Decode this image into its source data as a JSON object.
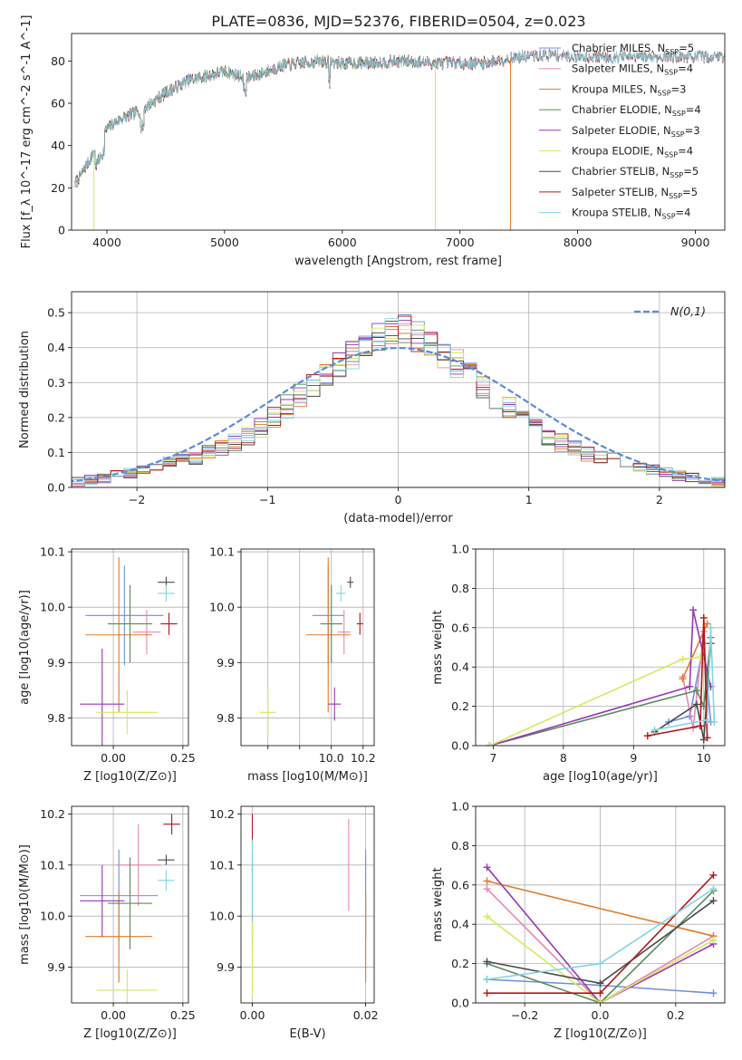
{
  "figure": {
    "title": "PLATE=0836, MJD=52376, FIBERID=0504, z=0.023"
  },
  "colors": {
    "Chabrier MILES": "#6f8fdc",
    "Salpeter MILES": "#e48ab2",
    "Kroupa MILES": "#e07b2a",
    "Chabrier ELODIE": "#5b8a5b",
    "Salpeter ELODIE": "#9a36b5",
    "Kroupa ELODIE": "#d4ea5e",
    "Chabrier STELIB": "#4a4a4a",
    "Salpeter STELIB": "#b01818",
    "Kroupa STELIB": "#85d4e0",
    "normal": "#5b8bd6"
  },
  "chart_data": [
    {
      "id": "spectrum",
      "type": "line",
      "xlabel": "wavelength [Angstrom, rest frame]",
      "ylabel": "Flux [f_λ 10^-17 erg cm^-2 s^-1 A^-1]",
      "xlim": [
        3700,
        9250
      ],
      "ylim": [
        0,
        93
      ],
      "xticks": [
        4000,
        5000,
        6000,
        7000,
        8000,
        9000
      ],
      "yticks": [
        0,
        20,
        40,
        60,
        80
      ],
      "grid": false,
      "legend": "upper-right",
      "legend_entries": [
        {
          "name": "Chabrier MILES",
          "nssp": "5"
        },
        {
          "name": "Salpeter MILES",
          "nssp": "4"
        },
        {
          "name": "Kroupa MILES",
          "nssp": "3"
        },
        {
          "name": "Chabrier ELODIE",
          "nssp": "4"
        },
        {
          "name": "Salpeter ELODIE",
          "nssp": "3"
        },
        {
          "name": "Kroupa ELODIE",
          "nssp": "4"
        },
        {
          "name": "Chabrier STELIB",
          "nssp": "5"
        },
        {
          "name": "Salpeter STELIB",
          "nssp": "5"
        },
        {
          "name": "Kroupa STELIB",
          "nssp": "4"
        }
      ],
      "continuum": {
        "x": [
          3730,
          3800,
          3900,
          4000,
          4100,
          4300,
          4500,
          4700,
          5000,
          5200,
          5500,
          5800,
          6000,
          6200,
          6500,
          6800,
          7000,
          7200,
          7500,
          7800,
          8000,
          8200
        ],
        "y": [
          22,
          28,
          38,
          48,
          52,
          57,
          65,
          71,
          75,
          72,
          78,
          80,
          79,
          79,
          80,
          79,
          79,
          79,
          82,
          83,
          82,
          82
        ]
      },
      "line_ranges": {
        "Chabrier MILES": [
          3730,
          7400
        ],
        "Salpeter MILES": [
          3730,
          7400
        ],
        "Kroupa MILES": [
          3730,
          7400
        ],
        "Chabrier ELODIE": [
          3730,
          6800
        ],
        "Salpeter ELODIE": [
          3730,
          6800
        ],
        "Kroupa ELODIE": [
          3730,
          6800
        ],
        "Chabrier STELIB": [
          3730,
          9250
        ],
        "Salpeter STELIB": [
          3730,
          9250
        ],
        "Kroupa STELIB": [
          3730,
          9250
        ]
      }
    },
    {
      "id": "residuals",
      "type": "line",
      "xlabel": "(data-model)/error",
      "ylabel": "Normed distribution",
      "xlim": [
        -2.5,
        2.5
      ],
      "ylim": [
        0,
        0.56
      ],
      "xticks": [
        -2,
        -1,
        0,
        1,
        2
      ],
      "yticks": [
        0.0,
        0.1,
        0.2,
        0.3,
        0.4,
        0.5
      ],
      "grid": true,
      "legend": "upper-right",
      "legend_label": "N(0,1)",
      "bin_width": 0.1
    },
    {
      "id": "age-vs-Z",
      "type": "scatter",
      "xlabel": "Z [log10(Z/Z⊙)]",
      "ylabel": "age [log10(age/yr)]",
      "xlim": [
        -0.15,
        0.27
      ],
      "ylim": [
        9.75,
        10.105
      ],
      "xticks": [
        0.0,
        0.25
      ],
      "yticks": [
        9.8,
        9.9,
        10.0,
        10.1
      ],
      "grid": true,
      "points": [
        {
          "series": "Chabrier MILES",
          "x": 0.04,
          "y": 9.985,
          "xe": 0.14,
          "ye": 0.09
        },
        {
          "series": "Salpeter MILES",
          "x": 0.12,
          "y": 9.955,
          "xe": 0.05,
          "ye": 0.04
        },
        {
          "series": "Kroupa MILES",
          "x": 0.02,
          "y": 9.95,
          "xe": 0.12,
          "ye": 0.14
        },
        {
          "series": "Chabrier ELODIE",
          "x": 0.06,
          "y": 9.97,
          "xe": 0.08,
          "ye": 0.07
        },
        {
          "series": "Salpeter ELODIE",
          "x": -0.04,
          "y": 9.825,
          "xe": 0.08,
          "ye": 0.1
        },
        {
          "series": "Kroupa ELODIE",
          "x": 0.05,
          "y": 9.81,
          "xe": 0.11,
          "ye": 0.04
        },
        {
          "series": "Chabrier STELIB",
          "x": 0.19,
          "y": 10.045,
          "xe": 0.03,
          "ye": 0.01
        },
        {
          "series": "Salpeter STELIB",
          "x": 0.2,
          "y": 9.97,
          "xe": 0.03,
          "ye": 0.02
        },
        {
          "series": "Kroupa STELIB",
          "x": 0.19,
          "y": 10.025,
          "xe": 0.03,
          "ye": 0.015
        }
      ]
    },
    {
      "id": "age-vs-mass",
      "type": "scatter",
      "xlabel": "mass [log10(M/M⊙)]",
      "ylabel": "",
      "xlim": [
        9.43,
        10.27
      ],
      "ylim": [
        9.75,
        10.105
      ],
      "xticks": [
        9.6,
        9.8,
        10.0,
        10.2
      ],
      "tick_labels": [
        "",
        "",
        "10.0",
        "10.2"
      ],
      "yticks": [
        9.8,
        9.9,
        10.0,
        10.1
      ],
      "grid": true,
      "points": [
        {
          "series": "Chabrier MILES",
          "x": 9.98,
          "y": 9.985,
          "xe": 0.1,
          "ye": 0.09
        },
        {
          "series": "Salpeter MILES",
          "x": 10.08,
          "y": 9.955,
          "xe": 0.04,
          "ye": 0.04
        },
        {
          "series": "Kroupa MILES",
          "x": 9.98,
          "y": 9.95,
          "xe": 0.14,
          "ye": 0.14
        },
        {
          "series": "Chabrier ELODIE",
          "x": 10.0,
          "y": 9.97,
          "xe": 0.07,
          "ye": 0.07
        },
        {
          "series": "Salpeter ELODIE",
          "x": 10.02,
          "y": 9.825,
          "xe": 0.04,
          "ye": 0.03
        },
        {
          "series": "Kroupa ELODIE",
          "x": 9.6,
          "y": 9.81,
          "xe": 0.05,
          "ye": 0.04
        },
        {
          "series": "Chabrier STELIB",
          "x": 10.12,
          "y": 10.045,
          "xe": 0.02,
          "ye": 0.01
        },
        {
          "series": "Salpeter STELIB",
          "x": 10.18,
          "y": 9.97,
          "xe": 0.02,
          "ye": 0.02
        },
        {
          "series": "Kroupa STELIB",
          "x": 10.06,
          "y": 10.025,
          "xe": 0.03,
          "ye": 0.015
        }
      ]
    },
    {
      "id": "massweight-vs-age",
      "type": "line",
      "xlabel": "age [log10(age/yr)]",
      "ylabel": "mass weight",
      "xlim": [
        6.75,
        10.3
      ],
      "ylim": [
        0,
        1
      ],
      "xticks": [
        7,
        8,
        9,
        10
      ],
      "yticks": [
        0.0,
        0.2,
        0.4,
        0.6,
        0.8,
        1.0
      ],
      "grid": true,
      "series": [
        {
          "name": "Chabrier MILES",
          "x": [
            9.5,
            9.8,
            10.0,
            10.1
          ],
          "y": [
            0.12,
            0.15,
            0.52,
            0.12
          ]
        },
        {
          "name": "Salpeter MILES",
          "x": [
            9.7,
            9.85,
            10.0
          ],
          "y": [
            0.35,
            0.09,
            0.58
          ]
        },
        {
          "name": "Kroupa MILES",
          "x": [
            9.7,
            10.05
          ],
          "y": [
            0.34,
            0.62
          ]
        },
        {
          "name": "Chabrier ELODIE",
          "x": [
            6.95,
            9.9,
            10.0,
            10.1
          ],
          "y": [
            0.0,
            0.28,
            0.2,
            0.55
          ]
        },
        {
          "name": "Salpeter ELODIE",
          "x": [
            6.95,
            9.8,
            9.85,
            10.1
          ],
          "y": [
            0.0,
            0.3,
            0.69,
            0.3
          ]
        },
        {
          "name": "Kroupa ELODIE",
          "x": [
            6.95,
            9.7,
            9.95
          ],
          "y": [
            0.0,
            0.44,
            0.45
          ]
        },
        {
          "name": "Chabrier STELIB",
          "x": [
            9.3,
            9.9,
            10.0,
            10.1
          ],
          "y": [
            0.07,
            0.21,
            0.03,
            0.52
          ]
        },
        {
          "name": "Salpeter STELIB",
          "x": [
            9.2,
            9.95,
            10.0,
            10.05
          ],
          "y": [
            0.05,
            0.1,
            0.65,
            0.04
          ]
        },
        {
          "name": "Kroupa STELIB",
          "x": [
            9.3,
            10.05,
            10.1,
            10.15
          ],
          "y": [
            0.08,
            0.13,
            0.6,
            0.12
          ]
        }
      ]
    },
    {
      "id": "mass-vs-Z",
      "type": "scatter",
      "xlabel": "Z [log10(Z/Z⊙)]",
      "ylabel": "mass [log10(M/M⊙)]",
      "xlim": [
        -0.15,
        0.27
      ],
      "ylim": [
        9.83,
        10.215
      ],
      "xticks": [
        0.0,
        0.25
      ],
      "yticks": [
        9.9,
        10.0,
        10.1,
        10.2
      ],
      "grid": true,
      "points": [
        {
          "series": "Chabrier MILES",
          "x": 0.02,
          "y": 10.04,
          "xe": 0.14,
          "ye": 0.09
        },
        {
          "series": "Salpeter MILES",
          "x": 0.09,
          "y": 10.1,
          "xe": 0.08,
          "ye": 0.08
        },
        {
          "series": "Kroupa MILES",
          "x": 0.02,
          "y": 9.96,
          "xe": 0.12,
          "ye": 0.09
        },
        {
          "series": "Chabrier ELODIE",
          "x": 0.06,
          "y": 10.025,
          "xe": 0.08,
          "ye": 0.09
        },
        {
          "series": "Salpeter ELODIE",
          "x": -0.04,
          "y": 10.03,
          "xe": 0.08,
          "ye": 0.07
        },
        {
          "series": "Kroupa ELODIE",
          "x": 0.05,
          "y": 9.855,
          "xe": 0.11,
          "ye": 0.04
        },
        {
          "series": "Chabrier STELIB",
          "x": 0.19,
          "y": 10.11,
          "xe": 0.03,
          "ye": 0.01
        },
        {
          "series": "Salpeter STELIB",
          "x": 0.21,
          "y": 10.18,
          "xe": 0.03,
          "ye": 0.02
        },
        {
          "series": "Kroupa STELIB",
          "x": 0.19,
          "y": 10.07,
          "xe": 0.03,
          "ye": 0.02
        }
      ]
    },
    {
      "id": "mass-vs-ebv",
      "type": "scatter",
      "xlabel": "E(B-V)",
      "ylabel": "",
      "xlim": [
        -0.002,
        0.0215
      ],
      "ylim": [
        9.83,
        10.215
      ],
      "xticks": [
        0.0,
        0.02
      ],
      "yticks": [
        9.9,
        10.0,
        10.1,
        10.2
      ],
      "grid": true,
      "points": [
        {
          "series": "Chabrier MILES",
          "x": 0.02,
          "y": 10.04,
          "xe": 0,
          "ye": 0.09
        },
        {
          "series": "Salpeter MILES",
          "x": 0.017,
          "y": 10.1,
          "xe": 0,
          "ye": 0.09
        },
        {
          "series": "Kroupa MILES",
          "x": 0.02,
          "y": 9.96,
          "xe": 0,
          "ye": 0.09
        },
        {
          "series": "Chabrier ELODIE",
          "x": 0.0,
          "y": 10.025,
          "xe": 0,
          "ye": 0.09
        },
        {
          "series": "Salpeter ELODIE",
          "x": 0.0,
          "y": 10.03,
          "xe": 0,
          "ye": 0.07
        },
        {
          "series": "Kroupa ELODIE",
          "x": 0.0,
          "y": 9.92,
          "xe": 0,
          "ye": 0.08
        },
        {
          "series": "Chabrier STELIB",
          "x": 0.0,
          "y": 10.11,
          "xe": 0,
          "ye": 0.02
        },
        {
          "series": "Salpeter STELIB",
          "x": 0.0,
          "y": 10.17,
          "xe": 0,
          "ye": 0.03
        },
        {
          "series": "Kroupa STELIB",
          "x": 0.0,
          "y": 10.07,
          "xe": 0,
          "ye": 0.08
        }
      ]
    },
    {
      "id": "massweight-vs-Z",
      "type": "line",
      "xlabel": "Z [log10(Z/Z⊙)]",
      "ylabel": "mass weight",
      "xlim": [
        -0.33,
        0.33
      ],
      "ylim": [
        0,
        1
      ],
      "xticks": [
        -0.2,
        0.0,
        0.2
      ],
      "yticks": [
        0.0,
        0.2,
        0.4,
        0.6,
        0.8,
        1.0
      ],
      "grid": true,
      "series": [
        {
          "name": "Chabrier MILES",
          "x": [
            -0.3,
            0.0,
            0.3
          ],
          "y": [
            0.12,
            0.09,
            0.05
          ]
        },
        {
          "name": "Salpeter MILES",
          "x": [
            -0.3,
            0.0,
            0.3
          ],
          "y": [
            0.58,
            0.0,
            0.34
          ]
        },
        {
          "name": "Kroupa MILES",
          "x": [
            -0.3,
            0.3
          ],
          "y": [
            0.62,
            0.34
          ]
        },
        {
          "name": "Chabrier ELODIE",
          "x": [
            -0.3,
            0.0,
            0.3
          ],
          "y": [
            0.2,
            0.0,
            0.57
          ]
        },
        {
          "name": "Salpeter ELODIE",
          "x": [
            -0.3,
            0.0,
            0.3
          ],
          "y": [
            0.69,
            0.0,
            0.3
          ]
        },
        {
          "name": "Kroupa ELODIE",
          "x": [
            -0.3,
            0.0,
            0.3
          ],
          "y": [
            0.44,
            0.0,
            0.32
          ]
        },
        {
          "name": "Chabrier STELIB",
          "x": [
            -0.3,
            0.0,
            0.3
          ],
          "y": [
            0.21,
            0.1,
            0.52
          ]
        },
        {
          "name": "Salpeter STELIB",
          "x": [
            -0.3,
            0.0,
            0.3
          ],
          "y": [
            0.05,
            0.05,
            0.65
          ]
        },
        {
          "name": "Kroupa STELIB",
          "x": [
            -0.3,
            0.0,
            0.3
          ],
          "y": [
            0.12,
            0.2,
            0.58
          ]
        }
      ]
    }
  ]
}
